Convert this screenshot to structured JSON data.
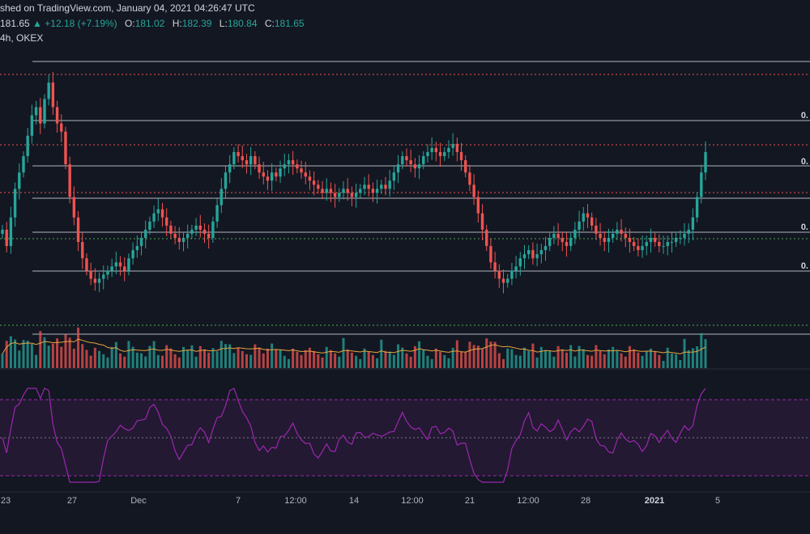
{
  "header": {
    "published_text": "shed on TradingView.com, January 04, 2021 04:26:47 UTC",
    "price": "181.65",
    "change": "+12.18 (+7.19%)",
    "o_label": "O:",
    "o_value": "181.02",
    "h_label": "H:",
    "h_value": "182.39",
    "l_label": "L:",
    "l_value": "180.84",
    "c_label": "C:",
    "c_value": "181.65",
    "interval_exchange": "4h, OKEX"
  },
  "colors": {
    "background": "#131722",
    "up": "#26a69a",
    "down": "#ef5350",
    "rsi": "#9c27b0",
    "volume_ma": "#e8a33d",
    "fib_line": "#b2b5be",
    "red_dotted": "#ef5350",
    "green_dotted": "#4caf50"
  },
  "fib_labels": [
    "0.",
    "0.",
    "0.",
    "0."
  ],
  "x_ticks": [
    {
      "label": "23",
      "bold": false
    },
    {
      "label": "27",
      "bold": false
    },
    {
      "label": "Dec",
      "bold": false
    },
    {
      "label": "7",
      "bold": false
    },
    {
      "label": "12:00",
      "bold": false
    },
    {
      "label": "14",
      "bold": false
    },
    {
      "label": "12:00",
      "bold": false
    },
    {
      "label": "21",
      "bold": false
    },
    {
      "label": "12:00",
      "bold": false
    },
    {
      "label": "28",
      "bold": false
    },
    {
      "label": "2021",
      "bold": true
    },
    {
      "label": "5",
      "bold": false
    }
  ],
  "chart_data": {
    "type": "candlestick",
    "interval": "4h",
    "exchange": "OKEX",
    "last": {
      "open": 181.02,
      "high": 182.39,
      "low": 180.84,
      "close": 181.65
    },
    "closes_approx": [
      162,
      158,
      165,
      172,
      176,
      180,
      185,
      190,
      192,
      188,
      194,
      198,
      192,
      188,
      186,
      178,
      170,
      165,
      159,
      155,
      152,
      150,
      149,
      150,
      151,
      152,
      153,
      154,
      153,
      152,
      155,
      157,
      158,
      160,
      162,
      164,
      166,
      167,
      165,
      163,
      161,
      160,
      159,
      160,
      161,
      162,
      163,
      162,
      161,
      160,
      164,
      168,
      172,
      176,
      178,
      181,
      180,
      179,
      178,
      180,
      178,
      176,
      175,
      174,
      176,
      175,
      177,
      178,
      179,
      178,
      177,
      176,
      175,
      174,
      173,
      172,
      171,
      172,
      171,
      170,
      171,
      172,
      171,
      170,
      171,
      172,
      173,
      172,
      171,
      172,
      173,
      172,
      174,
      176,
      178,
      180,
      179,
      178,
      177,
      178,
      180,
      181,
      182,
      181,
      180,
      181,
      182,
      183,
      181,
      179,
      176,
      173,
      170,
      166,
      162,
      158,
      154,
      152,
      150,
      149,
      150,
      152,
      153,
      155,
      156,
      157,
      155,
      156,
      157,
      158,
      160,
      161,
      160,
      159,
      158,
      160,
      162,
      164,
      166,
      165,
      163,
      161,
      160,
      159,
      160,
      161,
      162,
      161,
      160,
      159,
      158,
      157,
      158,
      159,
      160,
      159,
      158,
      158,
      159,
      159,
      160,
      160,
      161,
      162,
      165,
      170,
      176,
      181
    ],
    "rsi": {
      "overbought": 70,
      "middle": 50,
      "oversold": 30
    },
    "volume_ma": true
  }
}
